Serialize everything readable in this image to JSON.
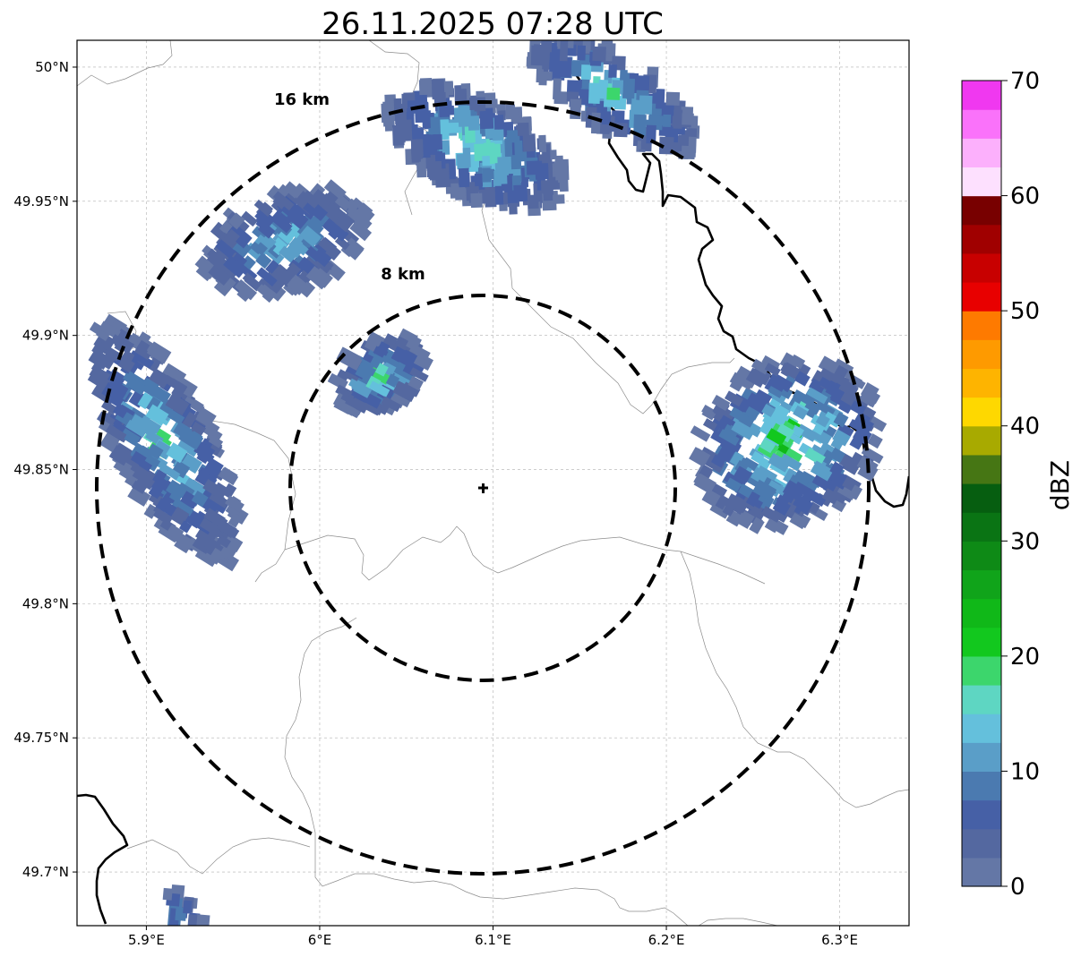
{
  "title": "26.11.2025 07:28 UTC",
  "map": {
    "lon_range": [
      5.86,
      6.34
    ],
    "lat_range": [
      49.68,
      50.01
    ],
    "x_ticks": [
      {
        "value": 5.9,
        "label": "5.9°E"
      },
      {
        "value": 6.0,
        "label": "6°E"
      },
      {
        "value": 6.1,
        "label": "6.1°E"
      },
      {
        "value": 6.2,
        "label": "6.2°E"
      },
      {
        "value": 6.3,
        "label": "6.3°E"
      }
    ],
    "y_ticks": [
      {
        "value": 50.0,
        "label": "50°N"
      },
      {
        "value": 49.95,
        "label": "49.95°N"
      },
      {
        "value": 49.9,
        "label": "49.9°N"
      },
      {
        "value": 49.85,
        "label": "49.85°N"
      },
      {
        "value": 49.8,
        "label": "49.8°N"
      },
      {
        "value": 49.75,
        "label": "49.75°N"
      },
      {
        "value": 49.7,
        "label": "49.7°N"
      }
    ],
    "grid": true,
    "radar_site": {
      "lon": 6.0955,
      "lat": 49.843
    },
    "range_rings": [
      {
        "radius_km": 8,
        "label": "8 km"
      },
      {
        "radius_km": 16,
        "label": "16 km"
      }
    ]
  },
  "colorbar": {
    "label": "dBZ",
    "min": 0,
    "max": 70,
    "tick_values": [
      0,
      10,
      20,
      30,
      40,
      50,
      60,
      70
    ],
    "tick_labels": [
      "0",
      "10",
      "20",
      "30",
      "40",
      "50",
      "60",
      "70"
    ],
    "colors": [
      "#6477a6",
      "#5468a0",
      "#4660a6",
      "#4b7ab0",
      "#5a9ec8",
      "#64c0dc",
      "#5ed6c2",
      "#3cd66c",
      "#12c81e",
      "#10b818",
      "#10a41a",
      "#0e8a16",
      "#0a7414",
      "#065e10",
      "#467614",
      "#a8aa00",
      "#fed800",
      "#feb400",
      "#fe9a00",
      "#fe7a00",
      "#e80000",
      "#c80000",
      "#a00000",
      "#780000",
      "#fde0fe",
      "#fcb0fc",
      "#fa72fa",
      "#f038f0"
    ]
  },
  "chart_data": {
    "type": "heatmap",
    "title": "26.11.2025 07:28 UTC",
    "xlabel": "",
    "ylabel": "",
    "value_label": "dBZ",
    "x_range": [
      5.86,
      6.34
    ],
    "y_range": [
      49.68,
      50.01
    ],
    "value_range": [
      0,
      70
    ],
    "echo_regions": [
      {
        "region": "north",
        "lon": 6.09,
        "lat": 49.97,
        "peak_dbz": 22
      },
      {
        "region": "north-east",
        "lon": 6.17,
        "lat": 49.99,
        "peak_dbz": 20
      },
      {
        "region": "north-west",
        "lon": 5.98,
        "lat": 49.935,
        "peak_dbz": 17
      },
      {
        "region": "west",
        "lon": 5.91,
        "lat": 49.86,
        "peak_dbz": 20
      },
      {
        "region": "centre",
        "lon": 6.035,
        "lat": 49.885,
        "peak_dbz": 21
      },
      {
        "region": "east",
        "lon": 6.27,
        "lat": 49.86,
        "peak_dbz": 26
      },
      {
        "region": "south-west",
        "lon": 5.92,
        "lat": 49.685,
        "peak_dbz": 14
      }
    ]
  }
}
